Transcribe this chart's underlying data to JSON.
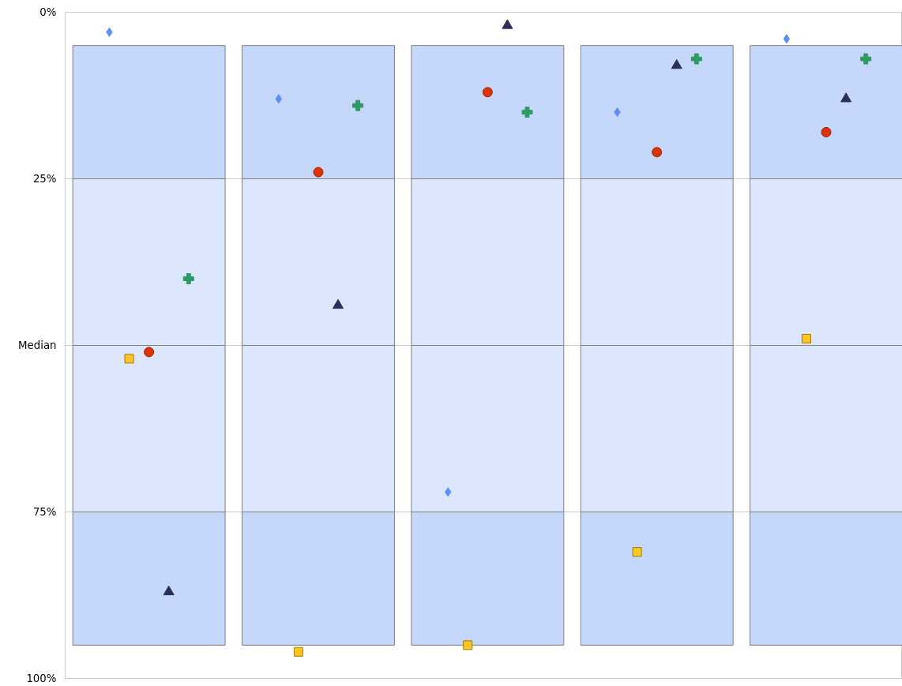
{
  "chart_data": {
    "type": "bar",
    "categories": [
      null,
      null,
      null,
      null,
      null
    ],
    "ylim": [
      100,
      0
    ],
    "yticks": [
      {
        "value": 0,
        "label": "0%"
      },
      {
        "value": 25,
        "label": "25%"
      },
      {
        "value": 50,
        "label": "Median"
      },
      {
        "value": 75,
        "label": "75%"
      },
      {
        "value": 100,
        "label": "100%"
      }
    ],
    "grid": "y",
    "series": [
      {
        "color": "#c5d8fc",
        "base": [
          5,
          5,
          5,
          5,
          5
        ],
        "values": [
          20,
          20,
          20,
          20,
          20
        ]
      },
      {
        "color": "#dce6fc",
        "base": [
          25,
          25,
          25,
          25,
          25
        ],
        "values": [
          25,
          25,
          25,
          25,
          25
        ]
      },
      {
        "color": "#dce6fc",
        "base": [
          50,
          50,
          50,
          50,
          50
        ],
        "values": [
          25,
          25,
          25,
          25,
          25
        ]
      },
      {
        "color": "#c5d8fc",
        "base": [
          75,
          75,
          75,
          75,
          75
        ],
        "values": [
          20,
          20,
          20,
          20,
          20
        ]
      },
      {
        "type": "scatter",
        "marker": "diamond",
        "color": "#5b8ff9",
        "values": [
          3,
          13,
          72,
          15,
          4
        ]
      },
      {
        "type": "scatter",
        "marker": "square",
        "color": "#fcc624",
        "values": [
          52,
          96,
          95,
          81,
          49
        ]
      },
      {
        "type": "scatter",
        "marker": "circle",
        "color": "#dd3300",
        "values": [
          51,
          24,
          12,
          21,
          18
        ]
      },
      {
        "type": "scatter",
        "marker": "triangle",
        "color": "#2d2d5e",
        "values": [
          87,
          44,
          2,
          8,
          13
        ]
      },
      {
        "type": "scatter",
        "marker": "cross",
        "color": "#2e9960",
        "values": [
          40,
          14,
          15,
          7,
          7
        ]
      }
    ]
  }
}
